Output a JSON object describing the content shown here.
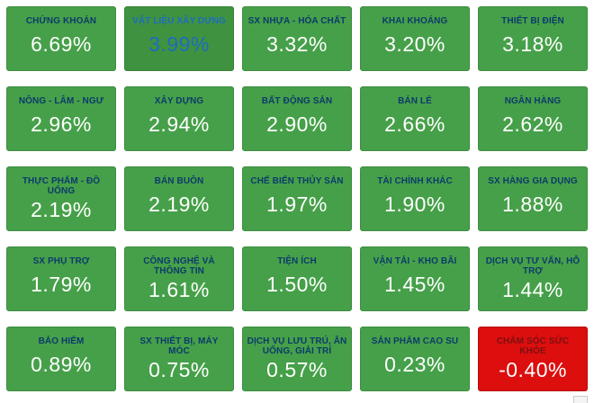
{
  "board_title": "",
  "colors": {
    "tile_green": "#46a049",
    "tile_green_active": "#3f923f",
    "tile_red": "#dd0e0e",
    "header_text_navy": "#0c3b6b",
    "header_text_dark_red": "#7c1012",
    "active_text_blue": "#1d6cc0",
    "value_text_white": "#ffffff",
    "page_background": "#ffffff"
  },
  "tiles": [
    {
      "label": "CHỨNG KHOÁN",
      "value": "6.69%",
      "variant": "green"
    },
    {
      "label": "VẬT LIỆU XÂY DỰNG",
      "value": "3.99%",
      "variant": "green-active"
    },
    {
      "label": "SX NHỰA - HÓA CHẤT",
      "value": "3.32%",
      "variant": "green"
    },
    {
      "label": "KHAI KHOÁNG",
      "value": "3.20%",
      "variant": "green"
    },
    {
      "label": "THIẾT BỊ ĐIỆN",
      "value": "3.18%",
      "variant": "green"
    },
    {
      "label": "NÔNG - LÂM - NGƯ",
      "value": "2.96%",
      "variant": "green"
    },
    {
      "label": "XÂY DỰNG",
      "value": "2.94%",
      "variant": "green"
    },
    {
      "label": "BẤT ĐỘNG SẢN",
      "value": "2.90%",
      "variant": "green"
    },
    {
      "label": "BÁN LẺ",
      "value": "2.66%",
      "variant": "green"
    },
    {
      "label": "NGÂN HÀNG",
      "value": "2.62%",
      "variant": "green"
    },
    {
      "label": "THỰC PHẨM - ĐỒ UỐNG",
      "value": "2.19%",
      "variant": "green"
    },
    {
      "label": "BÁN BUÔN",
      "value": "2.19%",
      "variant": "green"
    },
    {
      "label": "CHẾ BIẾN THỦY SẢN",
      "value": "1.97%",
      "variant": "green"
    },
    {
      "label": "TÀI CHÍNH KHÁC",
      "value": "1.90%",
      "variant": "green"
    },
    {
      "label": "SX HÀNG GIA DỤNG",
      "value": "1.88%",
      "variant": "green"
    },
    {
      "label": "SX PHỤ TRỢ",
      "value": "1.79%",
      "variant": "green"
    },
    {
      "label": "CÔNG NGHỆ VÀ THÔNG TIN",
      "value": "1.61%",
      "variant": "green"
    },
    {
      "label": "TIỆN ÍCH",
      "value": "1.50%",
      "variant": "green"
    },
    {
      "label": "VẬN TẢI - KHO BÃI",
      "value": "1.45%",
      "variant": "green"
    },
    {
      "label": "DỊCH VỤ TƯ VẤN, HỖ TRỢ",
      "value": "1.44%",
      "variant": "green"
    },
    {
      "label": "BẢO HIỂM",
      "value": "0.89%",
      "variant": "green"
    },
    {
      "label": "SX THIẾT BỊ, MÁY MÓC",
      "value": "0.75%",
      "variant": "green"
    },
    {
      "label": "DỊCH VỤ LƯU TRÚ, ĂN UỐNG, GIẢI TRÍ",
      "value": "0.57%",
      "variant": "green"
    },
    {
      "label": "SẢN PHẨM CAO SU",
      "value": "0.23%",
      "variant": "green"
    },
    {
      "label": "CHĂM SÓC SỨC KHỎE",
      "value": "-0.40%",
      "variant": "red"
    }
  ],
  "chart_data": {
    "type": "heatmap",
    "title": "",
    "layout": "5x5-grid",
    "unit": "%",
    "categories": [
      "CHỨNG KHOÁN",
      "VẬT LIỆU XÂY DỰNG",
      "SX NHỰA - HÓA CHẤT",
      "KHAI KHOÁNG",
      "THIẾT BỊ ĐIỆN",
      "NÔNG - LÂM - NGƯ",
      "XÂY DỰNG",
      "BẤT ĐỘNG SẢN",
      "BÁN LẺ",
      "NGÂN HÀNG",
      "THỰC PHẨM - ĐỒ UỐNG",
      "BÁN BUÔN",
      "CHẾ BIẾN THỦY SẢN",
      "TÀI CHÍNH KHÁC",
      "SX HÀNG GIA DỤNG",
      "SX PHỤ TRỢ",
      "CÔNG NGHỆ VÀ THÔNG TIN",
      "TIỆN ÍCH",
      "VẬN TẢI - KHO BÃI",
      "DỊCH VỤ TƯ VẤN, HỖ TRỢ",
      "BẢO HIỂM",
      "SX THIẾT BỊ, MÁY MÓC",
      "DỊCH VỤ LƯU TRÚ, ĂN UỐNG, GIẢI TRÍ",
      "SẢN PHẨM CAO SU",
      "CHĂM SÓC SỨC KHỎE"
    ],
    "values": [
      6.69,
      3.99,
      3.32,
      3.2,
      3.18,
      2.96,
      2.94,
      2.9,
      2.66,
      2.62,
      2.19,
      2.19,
      1.97,
      1.9,
      1.88,
      1.79,
      1.61,
      1.5,
      1.45,
      1.44,
      0.89,
      0.75,
      0.57,
      0.23,
      -0.4
    ],
    "color_positive": "#46a049",
    "color_negative": "#dd0e0e",
    "highlighted_category": "VẬT LIỆU XÂY DỰNG"
  }
}
